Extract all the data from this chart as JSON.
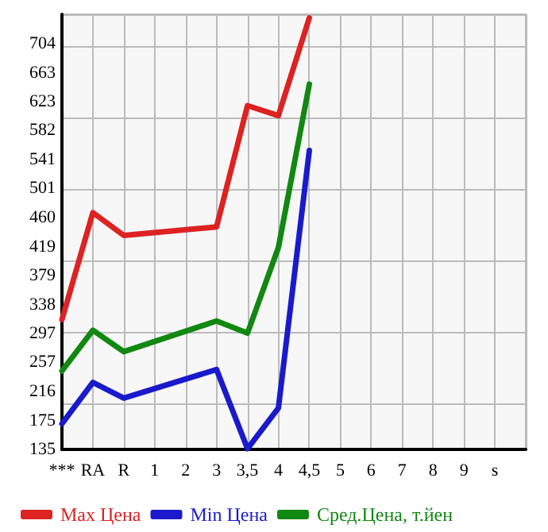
{
  "chart_data": {
    "type": "line",
    "categories": [
      "***",
      "RA",
      "R",
      "1",
      "2",
      "3",
      "3,5",
      "4",
      "4,5",
      "5",
      "6",
      "7",
      "8",
      "9",
      "s",
      null
    ],
    "series": [
      {
        "name": "Max Цена",
        "color": "#dd2222",
        "values": [
          317,
          467,
          435,
          null,
          null,
          447,
          617,
          603,
          740,
          null,
          null,
          null,
          null,
          null,
          null,
          null
        ]
      },
      {
        "name": "Min Цена",
        "color": "#1a1acc",
        "values": [
          171,
          229,
          207,
          null,
          null,
          247,
          136,
          193,
          554,
          null,
          null,
          null,
          null,
          null,
          null,
          null
        ]
      },
      {
        "name": "Сред.Цена, т.йен",
        "color": "#118811",
        "values": [
          245,
          302,
          272,
          null,
          null,
          315,
          298,
          418,
          647,
          null,
          null,
          null,
          null,
          null,
          null,
          null
        ]
      }
    ],
    "ylim": [
      135,
      745
    ],
    "yticks": [
      135,
      175,
      216,
      257,
      297,
      338,
      379,
      419,
      460,
      501,
      541,
      582,
      623,
      663,
      704
    ],
    "grid": true,
    "legend": "bottom",
    "marker": "none",
    "line_style": "solid"
  }
}
